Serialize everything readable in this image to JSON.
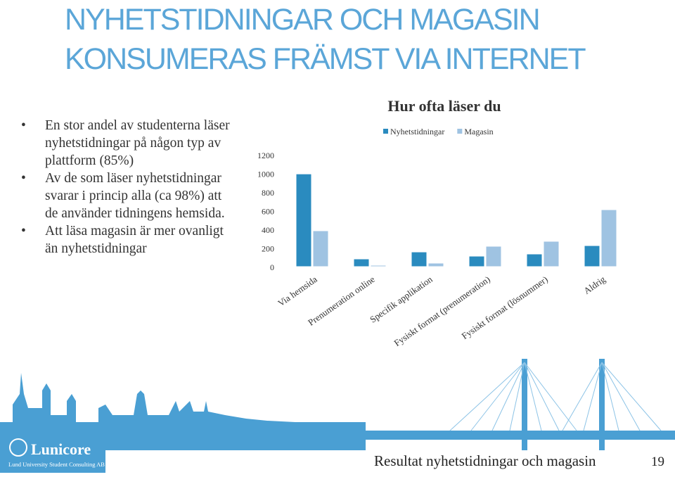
{
  "slide": {
    "title_lines": [
      "NYHETSTIDNINGAR OCH MAGASIN",
      "KONSUMERAS FRÄMST VIA INTERNET"
    ],
    "bullets": [
      "En stor andel av studenterna läser nyhetstidningar på någon typ av plattform (85%)",
      "Av de som läser nyhetstidningar svarar i princip alla (ca 98%) att de använder tidningens hemsida.",
      "Att läsa magasin är mer ovanligt än nyhetstidningar"
    ],
    "logo": "Lunicore",
    "logo_subtitle": "Lund University Student Consulting AB",
    "footer": "Resultat nyhetstidningar och magasin",
    "page_number": "19"
  },
  "chart_data": {
    "type": "bar",
    "title": "Hur ofta läser du",
    "categories": [
      "Via hemsida",
      "Prenumeration online",
      "Specifik applikation",
      "Fysiskt format (prenumeration)",
      "Fysiskt format (lösnummer)",
      "Aldrig"
    ],
    "series": [
      {
        "name": "Nyhetstidningar",
        "color": "#2a8bbf",
        "values": [
          995,
          83,
          158,
          113,
          136,
          226
        ]
      },
      {
        "name": "Magasin",
        "color": "#9fc3e2",
        "values": [
          385,
          15,
          38,
          219,
          272,
          611
        ]
      }
    ],
    "ylim": [
      0,
      1200
    ],
    "yticks": [
      0,
      200,
      400,
      600,
      800,
      1000,
      1200
    ],
    "legend": "top"
  }
}
